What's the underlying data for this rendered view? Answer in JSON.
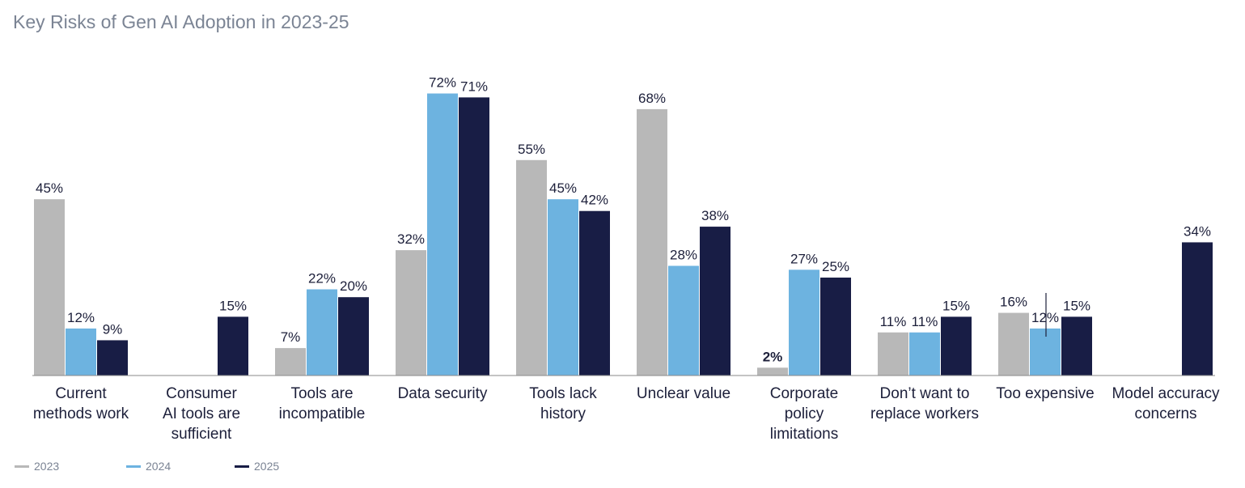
{
  "title": "Key Risks of Gen AI Adoption in 2023-25",
  "chart_data": {
    "type": "bar",
    "title": "Key Risks of Gen AI Adoption in 2023-25",
    "categories": [
      [
        "Current",
        "methods work"
      ],
      [
        "Consumer",
        "AI tools are",
        "sufficient"
      ],
      [
        "Tools are",
        "incompatible"
      ],
      [
        "Data security"
      ],
      [
        "Tools lack",
        "history"
      ],
      [
        "Unclear value"
      ],
      [
        "Corporate",
        "policy",
        "limitations"
      ],
      [
        "Don’t want to",
        "replace workers"
      ],
      [
        "Too expensive"
      ],
      [
        "Model accuracy",
        "concerns"
      ]
    ],
    "series": [
      {
        "name": "2023",
        "color": "#b8b8b8",
        "values": [
          45,
          null,
          7,
          32,
          55,
          68,
          2,
          11,
          16,
          null
        ]
      },
      {
        "name": "2024",
        "color": "#6db3e0",
        "values": [
          12,
          null,
          22,
          72,
          45,
          28,
          27,
          11,
          12,
          null
        ]
      },
      {
        "name": "2025",
        "color": "#181d45",
        "values": [
          9,
          15,
          20,
          71,
          42,
          38,
          25,
          15,
          15,
          34
        ]
      }
    ],
    "value_suffix": "%",
    "ylim": [
      0,
      75
    ],
    "grid": false,
    "legend_position": "bottom-left",
    "bold_labels": [
      [
        6,
        0
      ]
    ]
  }
}
